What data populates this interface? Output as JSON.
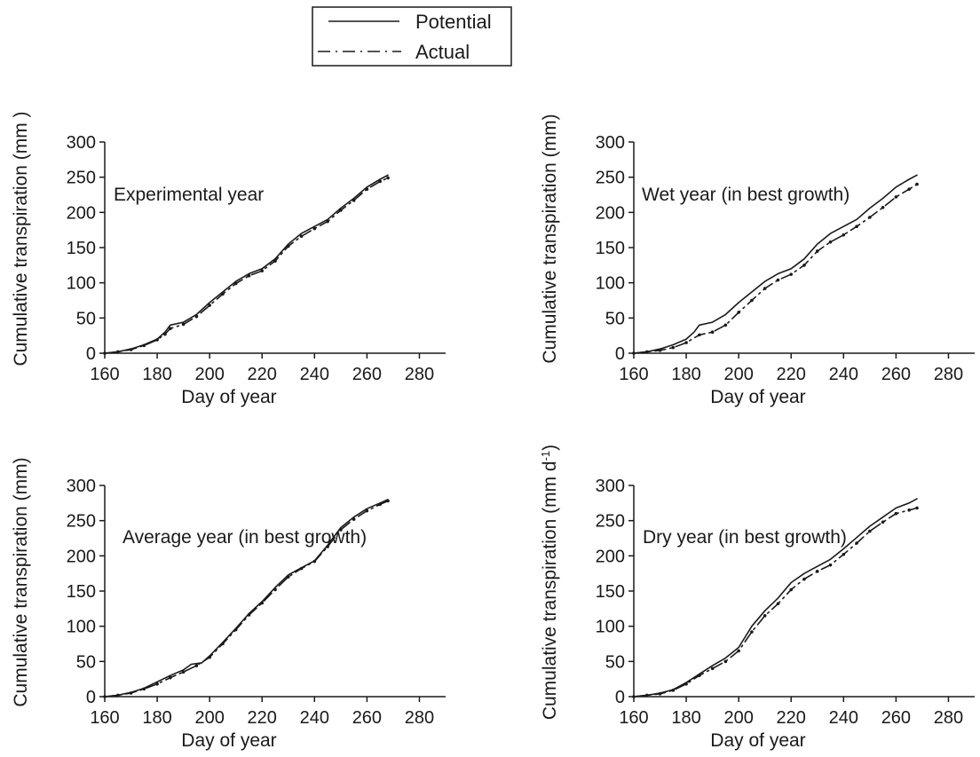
{
  "legend": {
    "entries": [
      {
        "label": "Potential",
        "style": "solid"
      },
      {
        "label": "Actual",
        "style": "dash-dot"
      }
    ],
    "placement": "top-center"
  },
  "colors": {
    "line": "#1a1a1a",
    "text": "#1a1a1a",
    "background": "#ffffff"
  },
  "chart_data": [
    {
      "type": "line",
      "title": "Experimental year",
      "xlabel": "Day of year",
      "ylabel": "Cumulative transpiration (mm )",
      "xlim": [
        160,
        290
      ],
      "ylim": [
        0,
        300
      ],
      "xticks": [
        160,
        180,
        200,
        220,
        240,
        260,
        280
      ],
      "yticks": [
        0,
        50,
        100,
        150,
        200,
        250,
        300
      ],
      "grid": false,
      "series": [
        {
          "name": "Potential",
          "x": [
            160,
            165,
            170,
            175,
            180,
            183,
            185,
            190,
            195,
            200,
            205,
            210,
            215,
            220,
            225,
            230,
            235,
            240,
            245,
            250,
            255,
            260,
            265,
            268
          ],
          "y": [
            0,
            2,
            6,
            12,
            20,
            30,
            40,
            44,
            55,
            72,
            87,
            102,
            113,
            120,
            134,
            155,
            170,
            180,
            190,
            206,
            220,
            236,
            247,
            253
          ]
        },
        {
          "name": "Actual",
          "x": [
            160,
            165,
            170,
            175,
            180,
            183,
            185,
            190,
            195,
            200,
            205,
            210,
            215,
            220,
            225,
            230,
            235,
            240,
            245,
            250,
            255,
            260,
            265,
            268
          ],
          "y": [
            0,
            2,
            5,
            11,
            19,
            27,
            35,
            41,
            52,
            68,
            84,
            99,
            110,
            117,
            131,
            152,
            166,
            177,
            187,
            203,
            217,
            233,
            244,
            249
          ]
        }
      ]
    },
    {
      "type": "line",
      "title": "Wet year (in best growth)",
      "xlabel": "Day of year",
      "ylabel": "Cumulative transpiration (mm)",
      "xlim": [
        160,
        290
      ],
      "ylim": [
        0,
        300
      ],
      "xticks": [
        160,
        180,
        200,
        220,
        240,
        260,
        280
      ],
      "yticks": [
        0,
        50,
        100,
        150,
        200,
        250,
        300
      ],
      "grid": false,
      "series": [
        {
          "name": "Potential",
          "x": [
            160,
            165,
            170,
            175,
            180,
            183,
            185,
            190,
            195,
            200,
            205,
            210,
            215,
            220,
            225,
            230,
            235,
            240,
            245,
            250,
            255,
            260,
            265,
            268
          ],
          "y": [
            0,
            2,
            6,
            12,
            20,
            30,
            40,
            44,
            55,
            72,
            87,
            102,
            113,
            120,
            134,
            155,
            170,
            180,
            190,
            206,
            220,
            236,
            247,
            253
          ]
        },
        {
          "name": "Actual",
          "x": [
            160,
            165,
            170,
            175,
            180,
            185,
            190,
            195,
            200,
            205,
            210,
            215,
            220,
            225,
            230,
            235,
            240,
            245,
            250,
            255,
            260,
            265,
            268
          ],
          "y": [
            0,
            2,
            4,
            8,
            15,
            26,
            30,
            40,
            58,
            75,
            92,
            104,
            112,
            125,
            145,
            158,
            168,
            180,
            193,
            207,
            222,
            233,
            240
          ]
        }
      ]
    },
    {
      "type": "line",
      "title": "Average year (in best growth)",
      "xlabel": "Day of year",
      "ylabel": "Cumulative transpiration (mm)",
      "xlim": [
        160,
        290
      ],
      "ylim": [
        0,
        300
      ],
      "xticks": [
        160,
        180,
        200,
        220,
        240,
        260,
        280
      ],
      "yticks": [
        0,
        50,
        100,
        150,
        200,
        250,
        300
      ],
      "grid": false,
      "series": [
        {
          "name": "Potential",
          "x": [
            160,
            165,
            170,
            175,
            180,
            185,
            190,
            193,
            197,
            200,
            205,
            210,
            215,
            220,
            225,
            230,
            235,
            240,
            245,
            250,
            255,
            260,
            265,
            268
          ],
          "y": [
            0,
            2,
            6,
            12,
            21,
            30,
            38,
            46,
            48,
            58,
            77,
            97,
            118,
            135,
            155,
            173,
            183,
            193,
            215,
            240,
            255,
            267,
            275,
            280
          ]
        },
        {
          "name": "Actual",
          "x": [
            160,
            165,
            170,
            175,
            180,
            185,
            190,
            195,
            200,
            205,
            210,
            215,
            220,
            225,
            230,
            235,
            240,
            245,
            250,
            255,
            260,
            265,
            268
          ],
          "y": [
            0,
            2,
            5,
            11,
            18,
            27,
            35,
            44,
            56,
            75,
            95,
            116,
            133,
            152,
            170,
            182,
            192,
            213,
            237,
            252,
            264,
            273,
            278
          ]
        }
      ]
    },
    {
      "type": "line",
      "title": "Dry year (in best growth)",
      "xlabel": "Day of year",
      "ylabel": "Cumulative transpiration (mm d-1)",
      "xlim": [
        160,
        290
      ],
      "ylim": [
        0,
        300
      ],
      "xticks": [
        160,
        180,
        200,
        220,
        240,
        260,
        280
      ],
      "yticks": [
        0,
        50,
        100,
        150,
        200,
        250,
        300
      ],
      "grid": false,
      "series": [
        {
          "name": "Potential",
          "x": [
            160,
            165,
            170,
            175,
            180,
            185,
            190,
            195,
            200,
            205,
            210,
            215,
            220,
            225,
            230,
            235,
            240,
            245,
            250,
            255,
            260,
            265,
            268
          ],
          "y": [
            0,
            2,
            5,
            10,
            20,
            32,
            44,
            55,
            70,
            100,
            122,
            140,
            162,
            175,
            185,
            195,
            210,
            226,
            242,
            255,
            268,
            275,
            281
          ]
        },
        {
          "name": "Actual",
          "x": [
            160,
            165,
            170,
            175,
            180,
            185,
            190,
            195,
            200,
            205,
            210,
            215,
            220,
            225,
            230,
            235,
            240,
            245,
            250,
            255,
            260,
            265,
            268
          ],
          "y": [
            0,
            2,
            4,
            9,
            18,
            30,
            40,
            50,
            65,
            92,
            115,
            132,
            152,
            167,
            178,
            187,
            202,
            218,
            235,
            248,
            260,
            265,
            268
          ]
        }
      ]
    }
  ]
}
